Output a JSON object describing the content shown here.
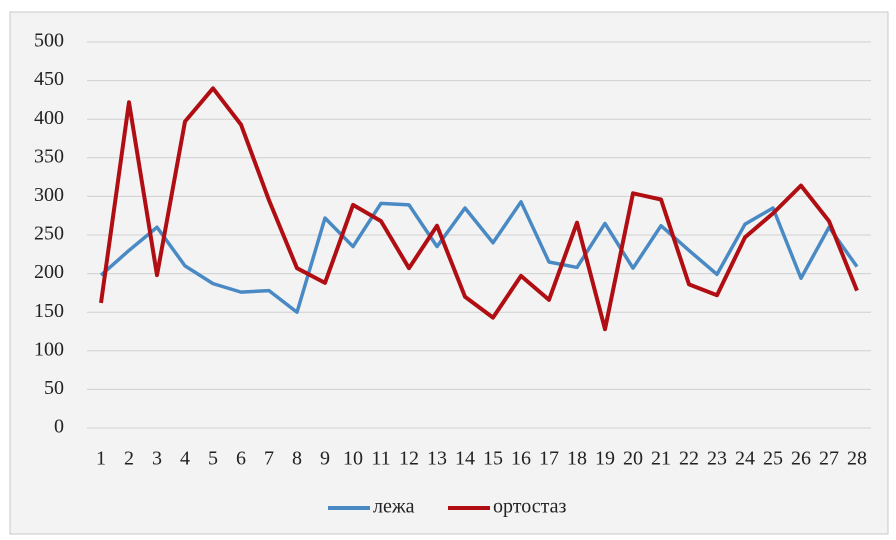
{
  "chart_data": {
    "type": "line",
    "categories": [
      "1",
      "2",
      "3",
      "4",
      "5",
      "6",
      "7",
      "8",
      "9",
      "10",
      "11",
      "12",
      "13",
      "14",
      "15",
      "16",
      "17",
      "18",
      "19",
      "20",
      "21",
      "22",
      "23",
      "24",
      "25",
      "26",
      "27",
      "28"
    ],
    "series": [
      {
        "name": "лежа",
        "color": "#4a8ac4",
        "values": [
          198,
          230,
          260,
          210,
          187,
          176,
          178,
          150,
          272,
          235,
          291,
          289,
          235,
          285,
          240,
          293,
          215,
          208,
          265,
          207,
          262,
          230,
          199,
          264,
          285,
          194,
          260,
          209
        ]
      },
      {
        "name": "ортостаз",
        "color": "#b00e12",
        "values": [
          162,
          422,
          198,
          397,
          440,
          393,
          295,
          207,
          188,
          289,
          268,
          207,
          262,
          170,
          143,
          197,
          166,
          266,
          128,
          304,
          296,
          186,
          172,
          247,
          278,
          314,
          268,
          178
        ]
      }
    ],
    "ylim": [
      0,
      500
    ],
    "yticks": [
      0,
      50,
      100,
      150,
      200,
      250,
      300,
      350,
      400,
      450,
      500
    ],
    "grid": true,
    "legend": "bottom"
  }
}
